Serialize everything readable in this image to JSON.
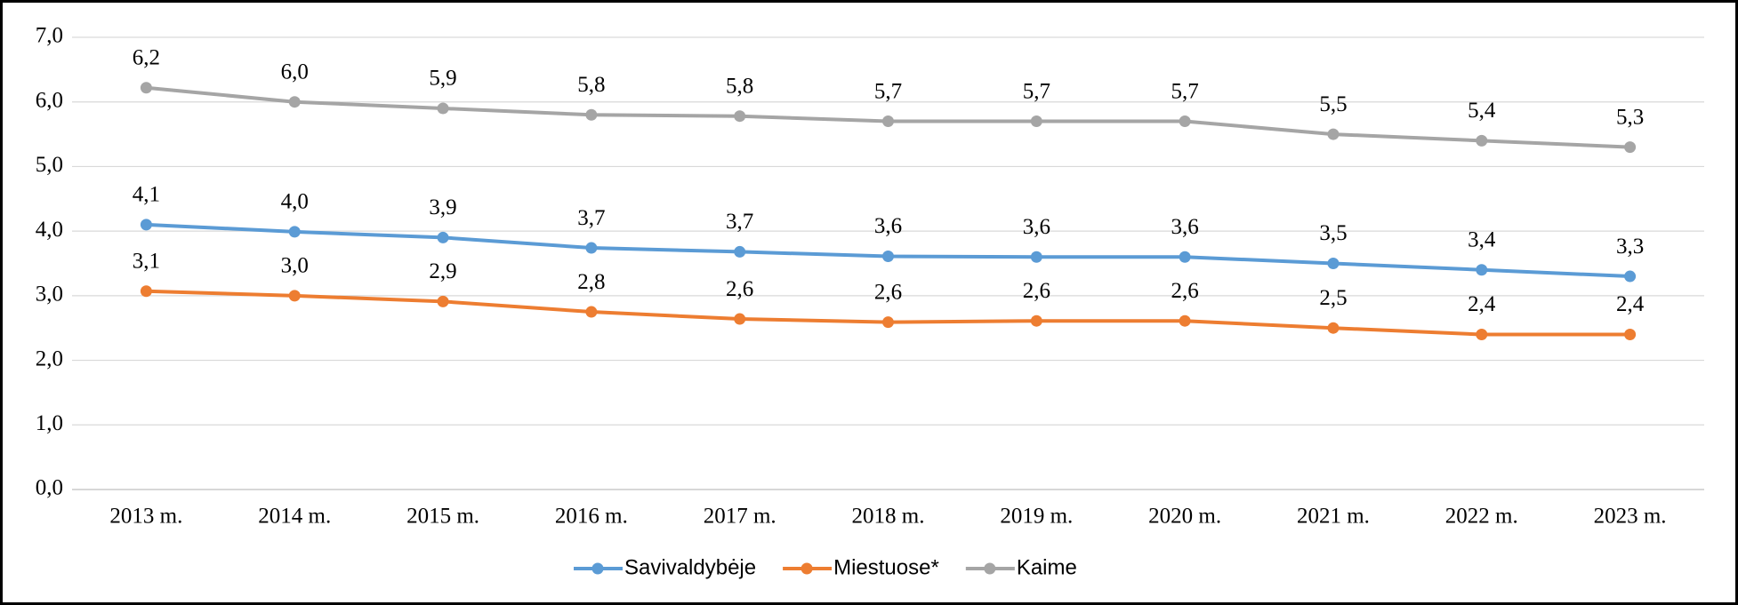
{
  "chart_data": {
    "type": "line",
    "categories": [
      "2013 m.",
      "2014 m.",
      "2015 m.",
      "2016 m.",
      "2017 m.",
      "2018 m.",
      "2019 m.",
      "2020 m.",
      "2021 m.",
      "2022 m.",
      "2023 m."
    ],
    "series": [
      {
        "name": "Savivaldybėje",
        "color": "#5b9bd5",
        "values": [
          4.1,
          3.99,
          3.9,
          3.74,
          3.68,
          3.61,
          3.6,
          3.6,
          3.5,
          3.4,
          3.3
        ],
        "value_labels": [
          "4,1",
          "4,0",
          "3,9",
          "3,7",
          "3,7",
          "3,6",
          "3,6",
          "3,6",
          "3,5",
          "3,4",
          "3,3"
        ]
      },
      {
        "name": "Miestuose*",
        "color": "#ed7d31",
        "values": [
          3.07,
          3.0,
          2.91,
          2.75,
          2.64,
          2.59,
          2.61,
          2.61,
          2.5,
          2.4,
          2.4
        ],
        "value_labels": [
          "3,1",
          "3,0",
          "2,9",
          "2,8",
          "2,6",
          "2,6",
          "2,6",
          "2,6",
          "2,5",
          "2,4",
          "2,4"
        ]
      },
      {
        "name": "Kaime",
        "color": "#a5a5a5",
        "values": [
          6.22,
          6.0,
          5.9,
          5.8,
          5.78,
          5.7,
          5.7,
          5.7,
          5.5,
          5.4,
          5.3
        ],
        "value_labels": [
          "6,2",
          "6,0",
          "5,9",
          "5,8",
          "5,8",
          "5,7",
          "5,7",
          "5,7",
          "5,5",
          "5,4",
          "5,3"
        ]
      }
    ],
    "ylim": [
      0,
      7
    ],
    "yticks": [
      {
        "value": 0,
        "label": "0,0"
      },
      {
        "value": 1,
        "label": "1,0"
      },
      {
        "value": 2,
        "label": "2,0"
      },
      {
        "value": 3,
        "label": "3,0"
      },
      {
        "value": 4,
        "label": "4,0"
      },
      {
        "value": 5,
        "label": "5,0"
      },
      {
        "value": 6,
        "label": "6,0"
      },
      {
        "value": 7,
        "label": "7,0"
      }
    ],
    "grid": true,
    "legend": "bottom"
  }
}
